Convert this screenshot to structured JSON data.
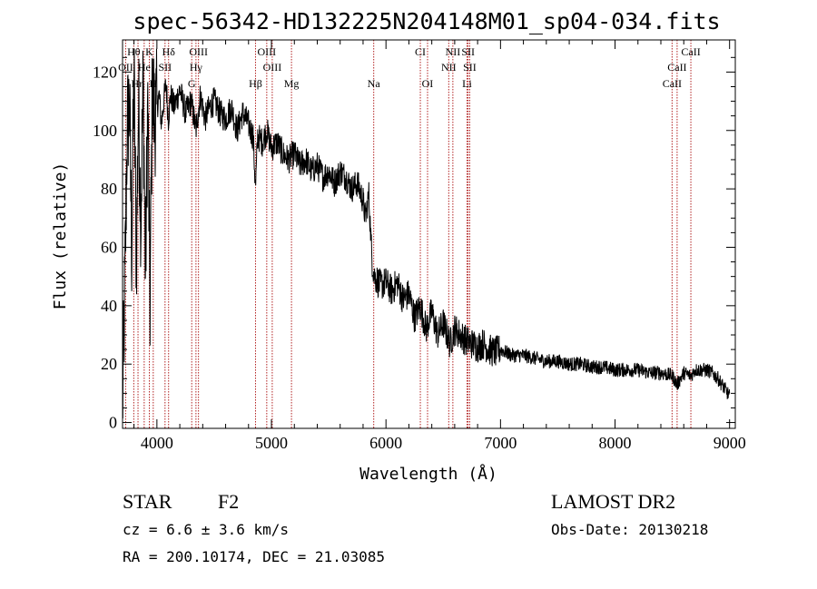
{
  "chart_data": {
    "type": "line",
    "title": "spec-56342-HD132225N204148M01_sp04-034.fits",
    "xlabel": "Wavelength (Å)",
    "ylabel": "Flux (relative)",
    "xlim": [
      3700,
      9050
    ],
    "ylim": [
      -2,
      131
    ],
    "xticks": [
      4000,
      5000,
      6000,
      7000,
      8000,
      9000
    ],
    "yticks": [
      0,
      20,
      40,
      60,
      80,
      100,
      120
    ],
    "grid": false,
    "series": [
      {
        "values_x": [
          3700,
          3720,
          3740,
          3760,
          3780,
          3800,
          3820,
          3840,
          3860,
          3880,
          3900,
          3920,
          3940,
          3960,
          3980,
          4000,
          4020,
          4040,
          4060,
          4080,
          4100,
          4120,
          4150,
          4200,
          4250,
          4300,
          4340,
          4380,
          4420,
          4460,
          4500,
          4550,
          4600,
          4650,
          4700,
          4750,
          4800,
          4840,
          4861,
          4880,
          4920,
          4960,
          5000,
          5050,
          5100,
          5150,
          5200,
          5250,
          5300,
          5350,
          5400,
          5450,
          5500,
          5550,
          5600,
          5650,
          5700,
          5750,
          5800,
          5820,
          5850,
          5870,
          5880,
          5890,
          5900,
          5920,
          5950,
          6000,
          6050,
          6100,
          6150,
          6200,
          6250,
          6300,
          6350,
          6400,
          6450,
          6500,
          6560,
          6600,
          6650,
          6700,
          6750,
          6800,
          6850,
          6900,
          6950,
          7000,
          7050,
          7100,
          7200,
          7300,
          7400,
          7500,
          7600,
          7700,
          7800,
          7900,
          8000,
          8100,
          8200,
          8300,
          8400,
          8500,
          8542,
          8600,
          8662,
          8700,
          8800,
          8850,
          8900,
          8950,
          9000
        ],
        "values_y": [
          5,
          45,
          100,
          110,
          60,
          120,
          55,
          110,
          70,
          118,
          50,
          110,
          40,
          115,
          105,
          108,
          112,
          102,
          110,
          116,
          104,
          112,
          108,
          114,
          106,
          110,
          100,
          112,
          104,
          108,
          110,
          106,
          104,
          108,
          100,
          106,
          102,
          98,
          80,
          98,
          96,
          100,
          94,
          96,
          92,
          90,
          92,
          88,
          90,
          86,
          88,
          84,
          86,
          82,
          86,
          84,
          80,
          82,
          76,
          70,
          78,
          62,
          55,
          52,
          50,
          49,
          47,
          48,
          45,
          48,
          42,
          44,
          36,
          40,
          32,
          38,
          30,
          34,
          27,
          32,
          30,
          28,
          27,
          26,
          27,
          25,
          24,
          25,
          24,
          23,
          23,
          22,
          21,
          21,
          20,
          20,
          19,
          19,
          18,
          18,
          18,
          17,
          17,
          16,
          13,
          17,
          16,
          18,
          18,
          17,
          15,
          12,
          9
        ]
      }
    ],
    "line_markers": [
      {
        "label": "Hθ",
        "wl": 3798,
        "row": 0
      },
      {
        "label": "K",
        "wl": 3934,
        "row": 0
      },
      {
        "label": "Hδ",
        "wl": 4102,
        "row": 0
      },
      {
        "label": "OIII",
        "wl": 4363,
        "row": 0
      },
      {
        "label": "OIII",
        "wl": 4959,
        "row": 0
      },
      {
        "label": "CI",
        "wl": 6300,
        "row": 0
      },
      {
        "label": "NII",
        "wl": 6584,
        "row": 0
      },
      {
        "label": "SII",
        "wl": 6717,
        "row": 0
      },
      {
        "label": "CaII",
        "wl": 8662,
        "row": 0
      },
      {
        "label": "OII",
        "wl": 3727,
        "row": 1
      },
      {
        "label": "He",
        "wl": 3889,
        "row": 1
      },
      {
        "label": "SII",
        "wl": 4071,
        "row": 1
      },
      {
        "label": "Hγ",
        "wl": 4341,
        "row": 1
      },
      {
        "label": "OIII",
        "wl": 5007,
        "row": 1
      },
      {
        "label": "NII",
        "wl": 6548,
        "row": 1
      },
      {
        "label": "SII",
        "wl": 6731,
        "row": 1
      },
      {
        "label": "CaII",
        "wl": 8542,
        "row": 1
      },
      {
        "label": "Hη",
        "wl": 3835,
        "row": 2
      },
      {
        "label": "H",
        "wl": 3968,
        "row": 2
      },
      {
        "label": "G",
        "wl": 4304,
        "row": 2
      },
      {
        "label": "Hβ",
        "wl": 4861,
        "row": 2
      },
      {
        "label": "Mg",
        "wl": 5175,
        "row": 2
      },
      {
        "label": "Na",
        "wl": 5893,
        "row": 2
      },
      {
        "label": "OI",
        "wl": 6363,
        "row": 2
      },
      {
        "label": "Li",
        "wl": 6708,
        "row": 2
      },
      {
        "label": "CaII",
        "wl": 8498,
        "row": 2
      }
    ]
  },
  "info": {
    "class": "STAR",
    "subclass": "F2",
    "survey": "LAMOST DR2",
    "cz": "cz = 6.6 ± 3.6 km/s",
    "obsdate": "Obs-Date: 20130218",
    "radec": "RA = 200.10174, DEC =  21.03085"
  },
  "colors": {
    "spectrum": "#000000",
    "marker": "#b22222",
    "text": "#000000"
  }
}
